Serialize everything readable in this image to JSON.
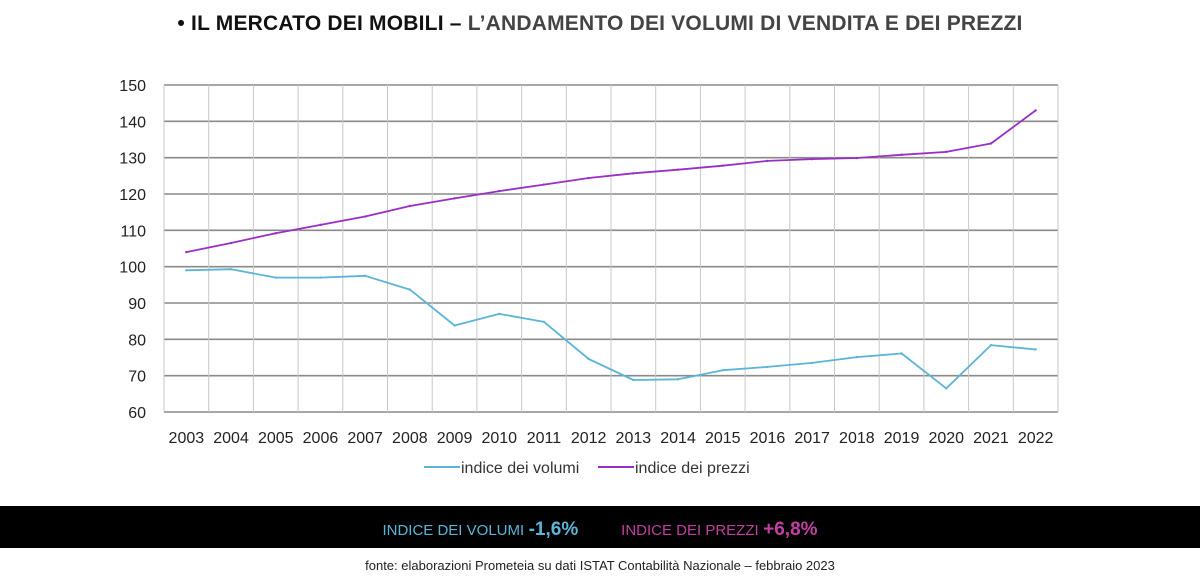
{
  "title": {
    "bullet": "•",
    "part1": "IL MERCATO DEI MOBILI",
    "separator": "–",
    "part2": "L’ANDAMENTO DEI VOLUMI DI VENDITA E DEI PREZZI"
  },
  "chart_data": {
    "type": "line",
    "x": [
      "2003",
      "2004",
      "2005",
      "2006",
      "2007",
      "2008",
      "2009",
      "2010",
      "2011",
      "2012",
      "2013",
      "2014",
      "2015",
      "2016",
      "2017",
      "2018",
      "2019",
      "2020",
      "2021",
      "2022"
    ],
    "ylim": [
      60,
      150
    ],
    "yticks": [
      60,
      70,
      80,
      90,
      100,
      110,
      120,
      130,
      140,
      150
    ],
    "grid": true,
    "legend": "bottom",
    "series": [
      {
        "name": "indice dei volumi",
        "color": "#5bb5d8",
        "values": [
          99,
          99.3,
          97,
          97,
          97.5,
          93.7,
          83.8,
          87,
          84.8,
          74.6,
          68.8,
          69,
          71.5,
          72.4,
          73.5,
          75.1,
          76.1,
          66.5,
          78.4,
          77.2
        ]
      },
      {
        "name": "indice dei prezzi",
        "color": "#9b2fc4",
        "values": [
          104,
          106.5,
          109.2,
          111.5,
          113.8,
          116.7,
          118.8,
          120.8,
          122.6,
          124.4,
          125.7,
          126.7,
          127.8,
          129.1,
          129.6,
          129.9,
          130.8,
          131.6,
          133.9,
          143
        ]
      }
    ]
  },
  "summary": {
    "volumes_label": "INDICE DEI VOLUMI",
    "volumes_value": "-1,6%",
    "prices_label": "INDICE DEI PREZZI",
    "prices_value": "+6,8%",
    "volumes_color": "#5bb5d8",
    "prices_color": "#c43fa2"
  },
  "source": "fonte: elaborazioni Prometeia su dati ISTAT Contabilità Nazionale – febbraio 2023"
}
